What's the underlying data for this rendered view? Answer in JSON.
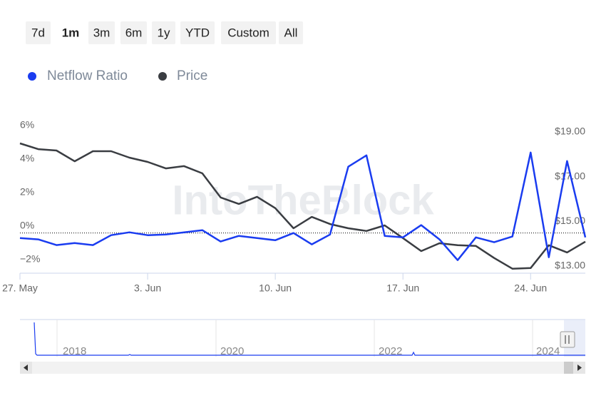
{
  "range_selector": {
    "buttons": [
      "7d",
      "1m",
      "3m",
      "6m",
      "1y",
      "YTD",
      "Custom",
      "All"
    ],
    "selected": 1
  },
  "watermark": "IntoTheBlock",
  "navigator": {
    "labels": [
      "2018",
      "2020",
      "2022",
      "2024"
    ]
  },
  "chart_data": {
    "type": "line",
    "x": [
      "27. May",
      "28. May",
      "29. May",
      "30. May",
      "31. May",
      "1. Jun",
      "2. Jun",
      "3. Jun",
      "4. Jun",
      "5. Jun",
      "6. Jun",
      "7. Jun",
      "8. Jun",
      "9. Jun",
      "10. Jun",
      "11. Jun",
      "12. Jun",
      "13. Jun",
      "14. Jun",
      "15. Jun",
      "16. Jun",
      "17. Jun",
      "18. Jun",
      "19. Jun",
      "20. Jun",
      "21. Jun",
      "22. Jun",
      "23. Jun",
      "24. Jun",
      "25. Jun",
      "26. Jun",
      "27. Jun"
    ],
    "xticks": [
      "27. May",
      "3. Jun",
      "10. Jun",
      "17. Jun",
      "24. Jun"
    ],
    "series": [
      {
        "name": "Netflow Ratio",
        "color": "#1a3cf0",
        "axis": "y",
        "values": [
          -0.3,
          -0.38,
          -0.72,
          -0.6,
          -0.72,
          -0.13,
          0.04,
          -0.13,
          -0.09,
          0.04,
          0.17,
          -0.51,
          -0.17,
          -0.3,
          -0.43,
          0,
          -0.68,
          -0.09,
          3.96,
          4.64,
          -0.17,
          -0.26,
          0.47,
          -0.38,
          -1.62,
          -0.26,
          -0.55,
          -0.21,
          4.81,
          -1.45,
          4.3,
          -0.26
        ]
      },
      {
        "name": "Price",
        "color": "#3a3d42",
        "axis": "y2",
        "values": [
          18.49,
          18.23,
          18.17,
          17.69,
          18.14,
          18.14,
          17.85,
          17.66,
          17.37,
          17.47,
          17.15,
          16.07,
          15.78,
          16.1,
          15.59,
          14.69,
          15.2,
          14.88,
          14.69,
          14.57,
          14.82,
          14.25,
          13.67,
          14.02,
          13.93,
          13.9,
          13.36,
          12.88,
          12.91,
          13.93,
          13.61,
          14.09
        ]
      }
    ],
    "ylim": [
      -2.4,
      6.25
    ],
    "yticks": [
      {
        "value": 6,
        "label": "6%"
      },
      {
        "value": 4,
        "label": "4%"
      },
      {
        "value": 2,
        "label": "2%"
      },
      {
        "value": 0,
        "label": "0%"
      },
      {
        "value": -2,
        "label": "−2%"
      }
    ],
    "y2lim": [
      12.68,
      19.16
    ],
    "y2ticks": [
      {
        "value": 19,
        "label": "$19.00"
      },
      {
        "value": 17,
        "label": "$17.00"
      },
      {
        "value": 15,
        "label": "$15.00"
      },
      {
        "value": 13,
        "label": "$13.00"
      }
    ],
    "zero_line": true,
    "legend": "top-left"
  }
}
